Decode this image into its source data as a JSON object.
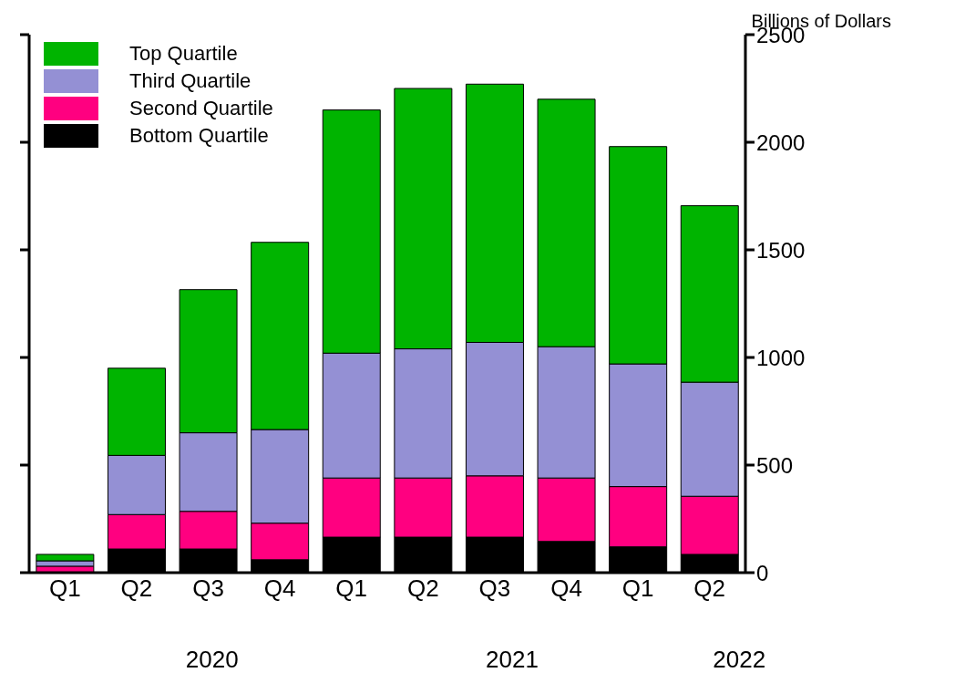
{
  "chart_data": {
    "type": "bar",
    "stacked": true,
    "ylabel": "Billions of Dollars",
    "categories": [
      "Q1",
      "Q2",
      "Q3",
      "Q4",
      "Q1",
      "Q2",
      "Q3",
      "Q4",
      "Q1",
      "Q2"
    ],
    "series": [
      {
        "name": "Bottom Quartile",
        "color": "#000000",
        "values": [
          null,
          110,
          110,
          60,
          165,
          165,
          165,
          145,
          120,
          85
        ]
      },
      {
        "name": "Second Quartile",
        "color": "#ff0080",
        "values": [
          30,
          160,
          175,
          170,
          275,
          275,
          285,
          295,
          280,
          270
        ]
      },
      {
        "name": "Third Quartile",
        "color": "#9490d4",
        "values": [
          25,
          275,
          365,
          435,
          580,
          600,
          620,
          610,
          570,
          530
        ]
      },
      {
        "name": "Top Quartile",
        "color": "#00b400",
        "values": [
          30,
          405,
          665,
          870,
          1130,
          1210,
          1200,
          1150,
          1010,
          820
        ]
      }
    ],
    "ylim": [
      0,
      2500
    ],
    "yticks": [
      0,
      500,
      1000,
      1500,
      2000,
      2500
    ],
    "annotations": [
      "2020",
      "2021",
      "2022"
    ],
    "legend": "top left",
    "grid": false
  }
}
